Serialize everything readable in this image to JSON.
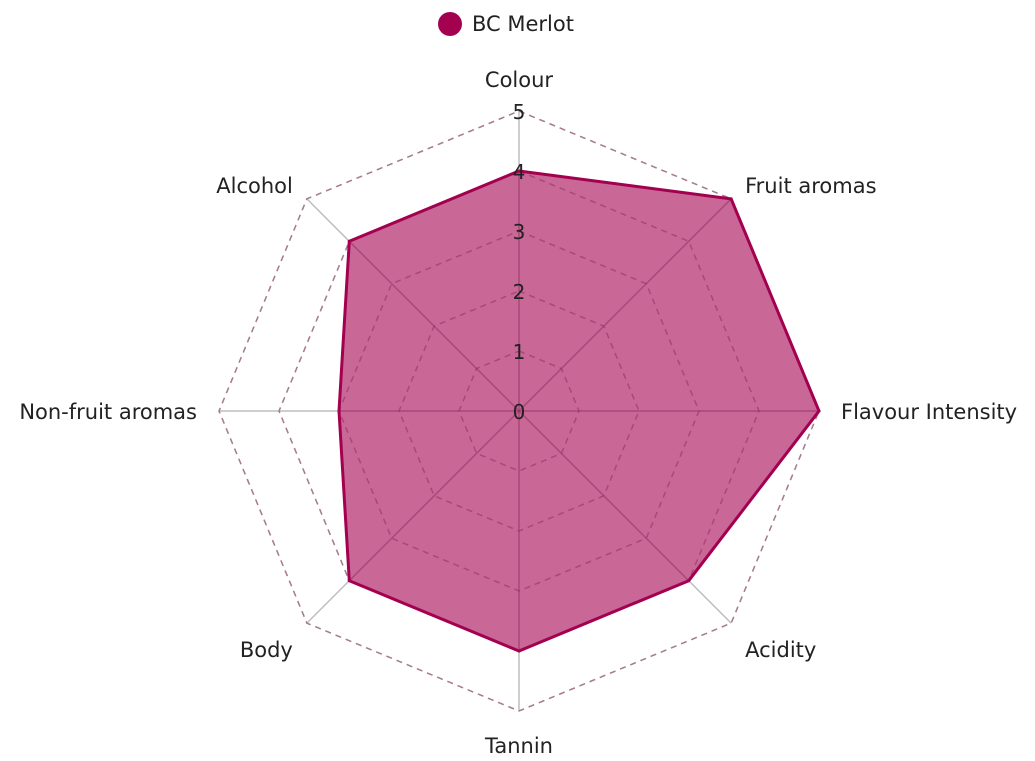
{
  "chart_data": {
    "type": "radar",
    "axes": [
      "Colour",
      "Fruit aromas",
      "Flavour Intensity",
      "Acidity",
      "Tannin",
      "Body",
      "Non-fruit aromas",
      "Alcohol"
    ],
    "ticks": [
      "0",
      "1",
      "2",
      "3",
      "4",
      "5"
    ],
    "rlim": [
      0,
      5
    ],
    "grid": true,
    "legend_position": "top-center",
    "series": [
      {
        "name": "BC Merlot",
        "values": [
          4,
          5,
          5,
          4,
          4,
          4,
          3,
          4
        ],
        "color": "#a3004f",
        "fill": "#c45a8e"
      }
    ]
  }
}
